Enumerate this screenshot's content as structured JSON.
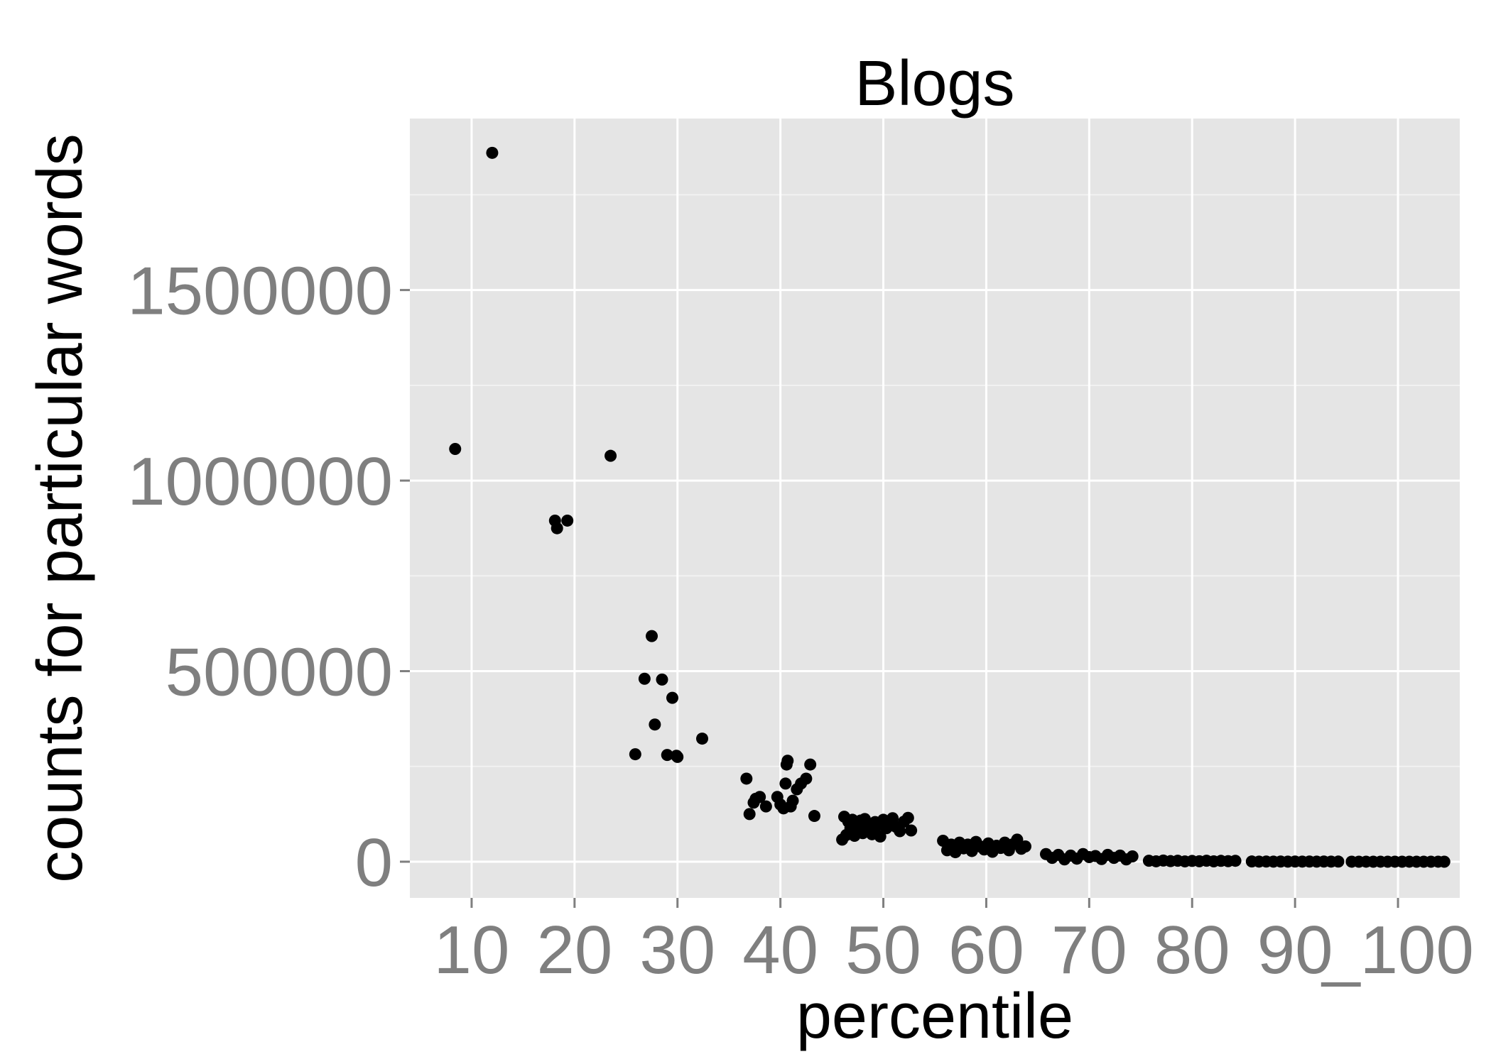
{
  "chart_data": {
    "type": "scatter",
    "title": "Blogs",
    "xlabel": "percentile",
    "ylabel": "counts for particular words",
    "x_categories": [
      "10",
      "20",
      "30",
      "40",
      "50",
      "60",
      "70",
      "80",
      "90",
      "_100"
    ],
    "y_ticks": [
      0,
      500000,
      1000000,
      1500000
    ],
    "y_tick_labels": [
      "0",
      "500000",
      "1000000",
      "1500000"
    ],
    "ylim": [
      -95000,
      1950000
    ],
    "grid": true,
    "legend": "none",
    "colors": {
      "panel": "#e5e5e5",
      "grid_major": "#ffffff",
      "grid_minor": "#f2f2f2",
      "point": "#000000",
      "tick_text": "#7f7f7f",
      "text": "#000000"
    },
    "series": [
      {
        "category": "10",
        "points": [
          [
            -0.16,
            1083000
          ],
          [
            0.2,
            1860000
          ]
        ]
      },
      {
        "category": "20",
        "points": [
          [
            -0.19,
            895000
          ],
          [
            -0.17,
            875000
          ],
          [
            -0.07,
            895000
          ],
          [
            0.35,
            1065000
          ]
        ]
      },
      {
        "category": "30",
        "points": [
          [
            -0.41,
            282000
          ],
          [
            -0.32,
            480000
          ],
          [
            -0.25,
            592000
          ],
          [
            -0.22,
            360000
          ],
          [
            -0.15,
            478000
          ],
          [
            -0.1,
            280000
          ],
          [
            -0.05,
            430000
          ],
          [
            -0.01,
            278000
          ],
          [
            0.0,
            275000
          ],
          [
            0.24,
            323000
          ]
        ]
      },
      {
        "category": "40",
        "points": [
          [
            -0.33,
            218000
          ],
          [
            -0.3,
            125000
          ],
          [
            -0.26,
            155000
          ],
          [
            -0.24,
            165000
          ],
          [
            -0.2,
            170000
          ],
          [
            -0.14,
            145000
          ],
          [
            -0.03,
            170000
          ],
          [
            0.0,
            150000
          ],
          [
            0.03,
            140000
          ],
          [
            0.05,
            205000
          ],
          [
            0.06,
            255000
          ],
          [
            0.07,
            265000
          ],
          [
            0.1,
            145000
          ],
          [
            0.12,
            160000
          ],
          [
            0.16,
            190000
          ],
          [
            0.2,
            205000
          ],
          [
            0.25,
            218000
          ],
          [
            0.29,
            255000
          ],
          [
            0.33,
            120000
          ]
        ]
      },
      {
        "category": "50",
        "points": [
          [
            -0.4,
            58000
          ],
          [
            -0.38,
            118000
          ],
          [
            -0.36,
            70000
          ],
          [
            -0.34,
            105000
          ],
          [
            -0.32,
            88000
          ],
          [
            -0.3,
            110000
          ],
          [
            -0.28,
            68000
          ],
          [
            -0.26,
            95000
          ],
          [
            -0.24,
            82000
          ],
          [
            -0.22,
            108000
          ],
          [
            -0.2,
            75000
          ],
          [
            -0.18,
            112000
          ],
          [
            -0.16,
            100000
          ],
          [
            -0.14,
            85000
          ],
          [
            -0.11,
            72000
          ],
          [
            -0.08,
            104000
          ],
          [
            -0.06,
            95000
          ],
          [
            -0.03,
            66000
          ],
          [
            0.0,
            110000
          ],
          [
            0.03,
            88000
          ],
          [
            0.06,
            100000
          ],
          [
            0.09,
            114000
          ],
          [
            0.12,
            92000
          ],
          [
            0.16,
            80000
          ],
          [
            0.2,
            105000
          ],
          [
            0.24,
            115000
          ],
          [
            0.27,
            82000
          ]
        ]
      },
      {
        "category": "60",
        "points": [
          [
            -0.42,
            55000
          ],
          [
            -0.38,
            30000
          ],
          [
            -0.34,
            45000
          ],
          [
            -0.3,
            25000
          ],
          [
            -0.26,
            50000
          ],
          [
            -0.22,
            35000
          ],
          [
            -0.18,
            45000
          ],
          [
            -0.14,
            28000
          ],
          [
            -0.1,
            52000
          ],
          [
            -0.06,
            40000
          ],
          [
            -0.02,
            32000
          ],
          [
            0.02,
            48000
          ],
          [
            0.06,
            26000
          ],
          [
            0.1,
            42000
          ],
          [
            0.14,
            36000
          ],
          [
            0.18,
            50000
          ],
          [
            0.22,
            30000
          ],
          [
            0.26,
            46000
          ],
          [
            0.3,
            58000
          ],
          [
            0.34,
            34000
          ],
          [
            0.38,
            40000
          ]
        ]
      },
      {
        "category": "70",
        "points": [
          [
            -0.42,
            20000
          ],
          [
            -0.36,
            10000
          ],
          [
            -0.3,
            18000
          ],
          [
            -0.24,
            6000
          ],
          [
            -0.18,
            16000
          ],
          [
            -0.12,
            8000
          ],
          [
            -0.06,
            20000
          ],
          [
            0.0,
            12000
          ],
          [
            0.06,
            15000
          ],
          [
            0.12,
            7000
          ],
          [
            0.18,
            18000
          ],
          [
            0.24,
            10000
          ],
          [
            0.3,
            16000
          ],
          [
            0.36,
            6000
          ],
          [
            0.42,
            14000
          ]
        ]
      },
      {
        "category": "80",
        "points": [
          [
            -0.42,
            2500
          ],
          [
            -0.35,
            1000
          ],
          [
            -0.28,
            3000
          ],
          [
            -0.21,
            1500
          ],
          [
            -0.14,
            2500
          ],
          [
            -0.07,
            800
          ],
          [
            0.0,
            2000
          ],
          [
            0.07,
            1200
          ],
          [
            0.14,
            2600
          ],
          [
            0.21,
            900
          ],
          [
            0.28,
            2200
          ],
          [
            0.35,
            1400
          ],
          [
            0.42,
            2400
          ]
        ]
      },
      {
        "category": "90",
        "points": [
          [
            -0.42,
            600
          ],
          [
            -0.35,
            300
          ],
          [
            -0.28,
            500
          ],
          [
            -0.21,
            200
          ],
          [
            -0.14,
            450
          ],
          [
            -0.07,
            250
          ],
          [
            0.0,
            500
          ],
          [
            0.07,
            300
          ],
          [
            0.14,
            400
          ],
          [
            0.21,
            200
          ],
          [
            0.28,
            450
          ],
          [
            0.35,
            300
          ],
          [
            0.42,
            350
          ]
        ]
      },
      {
        "category": "_100",
        "points": [
          [
            -0.45,
            100
          ],
          [
            -0.38,
            50
          ],
          [
            -0.31,
            80
          ],
          [
            -0.24,
            40
          ],
          [
            -0.17,
            90
          ],
          [
            -0.1,
            60
          ],
          [
            -0.03,
            70
          ],
          [
            0.04,
            30
          ],
          [
            0.11,
            80
          ],
          [
            0.18,
            50
          ],
          [
            0.25,
            60
          ],
          [
            0.32,
            40
          ],
          [
            0.39,
            70
          ],
          [
            0.45,
            50
          ]
        ]
      }
    ]
  }
}
